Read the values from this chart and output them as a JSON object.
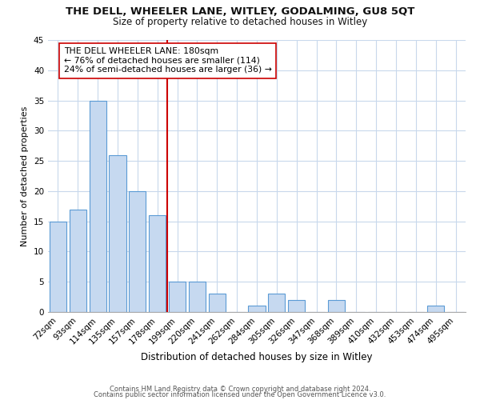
{
  "title": "THE DELL, WHEELER LANE, WITLEY, GODALMING, GU8 5QT",
  "subtitle": "Size of property relative to detached houses in Witley",
  "xlabel": "Distribution of detached houses by size in Witley",
  "ylabel": "Number of detached properties",
  "bar_labels": [
    "72sqm",
    "93sqm",
    "114sqm",
    "135sqm",
    "157sqm",
    "178sqm",
    "199sqm",
    "220sqm",
    "241sqm",
    "262sqm",
    "284sqm",
    "305sqm",
    "326sqm",
    "347sqm",
    "368sqm",
    "389sqm",
    "410sqm",
    "432sqm",
    "453sqm",
    "474sqm",
    "495sqm"
  ],
  "bar_values": [
    15,
    17,
    35,
    26,
    20,
    16,
    5,
    5,
    3,
    0,
    1,
    3,
    2,
    0,
    2,
    0,
    0,
    0,
    0,
    1,
    0
  ],
  "bar_color": "#c6d9f0",
  "bar_edge_color": "#5b9bd5",
  "vline_x": 5.5,
  "vline_color": "#cc0000",
  "annotation_line1": "THE DELL WHEELER LANE: 180sqm",
  "annotation_line2": "← 76% of detached houses are smaller (114)",
  "annotation_line3": "24% of semi-detached houses are larger (36) →",
  "ylim": [
    0,
    45
  ],
  "yticks": [
    0,
    5,
    10,
    15,
    20,
    25,
    30,
    35,
    40,
    45
  ],
  "footer1": "Contains HM Land Registry data © Crown copyright and database right 2024.",
  "footer2": "Contains public sector information licensed under the Open Government Licence v3.0.",
  "background_color": "#ffffff",
  "grid_color": "#c8d8ec",
  "title_fontsize": 9.5,
  "subtitle_fontsize": 8.5,
  "xlabel_fontsize": 8.5,
  "ylabel_fontsize": 8,
  "tick_fontsize": 7.5,
  "footer_fontsize": 6.0
}
